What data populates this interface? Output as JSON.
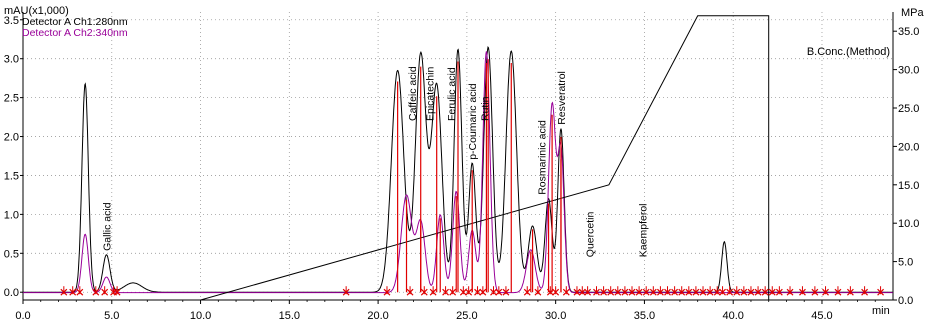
{
  "chart_data": {
    "type": "line",
    "left_axis_label": "mAU(x1,000)",
    "right_axis_label": "MPa",
    "x_unit": "min",
    "xlim": [
      0,
      49
    ],
    "ylim": [
      -0.1,
      3.6
    ],
    "ylim_right": [
      0,
      37.5
    ],
    "x_ticks": [
      0.0,
      5.0,
      10.0,
      15.0,
      20.0,
      25.0,
      30.0,
      35.0,
      40.0,
      45.0
    ],
    "y_ticks": [
      0.0,
      0.5,
      1.0,
      1.5,
      2.0,
      2.5,
      3.0,
      3.5
    ],
    "y_right_ticks": [
      0.0,
      5.0,
      10.0,
      15.0,
      20.0,
      25.0,
      30.0,
      35.0
    ],
    "legend": [
      {
        "name": "Detector A Ch1:280nm",
        "color": "#000000"
      },
      {
        "name": "Detector A Ch2:340nm",
        "color": "#990099"
      }
    ],
    "method_label": "B.Conc.(Method)",
    "colors": {
      "ch1": "#000000",
      "ch2": "#990099",
      "markers": "#e00000",
      "method": "#000000"
    },
    "series": [
      {
        "name": "Detector A Ch1:280nm",
        "peaks": [
          {
            "rt": 3.5,
            "height": 2.68,
            "width": 0.18
          },
          {
            "rt": 4.7,
            "height": 0.48,
            "width": 0.2
          },
          {
            "rt": 6.2,
            "height": 0.12,
            "width": 0.5
          },
          {
            "rt": 21.1,
            "height": 2.85,
            "width": 0.35
          },
          {
            "rt": 22.4,
            "height": 3.05,
            "width": 0.3
          },
          {
            "rt": 23.3,
            "height": 2.65,
            "width": 0.3
          },
          {
            "rt": 24.5,
            "height": 3.12,
            "width": 0.22
          },
          {
            "rt": 25.3,
            "height": 1.65,
            "width": 0.2
          },
          {
            "rt": 26.2,
            "height": 3.15,
            "width": 0.25
          },
          {
            "rt": 27.5,
            "height": 3.1,
            "width": 0.3
          },
          {
            "rt": 28.7,
            "height": 0.85,
            "width": 0.25
          },
          {
            "rt": 29.6,
            "height": 1.2,
            "width": 0.2
          },
          {
            "rt": 30.3,
            "height": 2.1,
            "width": 0.18
          },
          {
            "rt": 39.5,
            "height": 0.65,
            "width": 0.15
          }
        ]
      },
      {
        "name": "Detector A Ch2:340nm",
        "peaks": [
          {
            "rt": 3.5,
            "height": 0.75,
            "width": 0.18
          },
          {
            "rt": 4.7,
            "height": 0.2,
            "width": 0.2
          },
          {
            "rt": 21.6,
            "height": 1.25,
            "width": 0.3
          },
          {
            "rt": 22.4,
            "height": 0.9,
            "width": 0.25
          },
          {
            "rt": 23.5,
            "height": 1.0,
            "width": 0.2
          },
          {
            "rt": 24.4,
            "height": 1.3,
            "width": 0.2
          },
          {
            "rt": 25.3,
            "height": 0.8,
            "width": 0.2
          },
          {
            "rt": 26.1,
            "height": 3.1,
            "width": 0.2
          },
          {
            "rt": 28.6,
            "height": 0.55,
            "width": 0.25
          },
          {
            "rt": 29.8,
            "height": 2.4,
            "width": 0.2
          },
          {
            "rt": 30.3,
            "height": 1.8,
            "width": 0.18
          }
        ]
      },
      {
        "name": "B.Conc.(Method)",
        "x": [
          0.0,
          10.0,
          33.0,
          38.0,
          42.0,
          42.0
        ],
        "y": [
          0.0,
          0.0,
          15.0,
          37.0,
          37.0,
          0.0
        ]
      }
    ],
    "annotations": [
      {
        "text": "Gallic acid",
        "x": 4.7
      },
      {
        "text": "Caffeic acid",
        "x": 21.9
      },
      {
        "text": "Epicatechin",
        "x": 22.9
      },
      {
        "text": "Ferulic acid",
        "x": 24.1
      },
      {
        "text": "p-Coumaric acid",
        "x": 25.3
      },
      {
        "text": "Rutin",
        "x": 26.0
      },
      {
        "text": "Rosmarinic acid",
        "x": 29.2
      },
      {
        "text": "Resveratrol",
        "x": 30.3
      },
      {
        "text": "Quercetin",
        "x": 31.9
      },
      {
        "text": "Kaempferol",
        "x": 34.9
      }
    ],
    "integration_markers": [
      2.3,
      2.8,
      3.2,
      4.1,
      4.6,
      5.1,
      5.3,
      18.2,
      20.5,
      21.8,
      22.6,
      23.1,
      23.8,
      24.2,
      24.8,
      25.1,
      25.6,
      25.9,
      26.5,
      26.8,
      27.2,
      28.4,
      29.0,
      29.7,
      30.0,
      30.6,
      31.2,
      31.5,
      31.8,
      32.3,
      32.7,
      33.1,
      33.5,
      33.9,
      34.3,
      34.7,
      35.1,
      35.5,
      35.9,
      36.3,
      36.7,
      37.1,
      37.5,
      37.9,
      38.3,
      38.7,
      39.1,
      39.4,
      39.8,
      40.2,
      40.6,
      41.0,
      41.4,
      41.8,
      42.2,
      42.6,
      43.2,
      43.9,
      44.6,
      45.2,
      45.9,
      46.6,
      47.4,
      48.3
    ]
  }
}
